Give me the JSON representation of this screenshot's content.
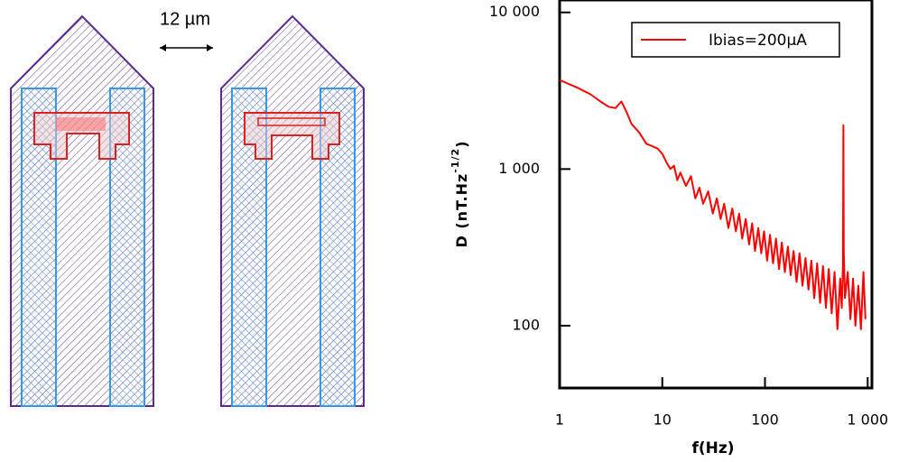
{
  "annotation": "12 µm",
  "chart_data": {
    "type": "line",
    "xlabel": "f(Hz)",
    "ylabel": [
      "D (nT.Hz",
      "-1/2",
      ")"
    ],
    "log_x": true,
    "log_y": true,
    "xlim": [
      1,
      1100
    ],
    "ylim": [
      40,
      12000
    ],
    "xticks": [
      1,
      10,
      100,
      {
        "value": 1000,
        "label": "1 000"
      }
    ],
    "yticks": [
      100,
      {
        "value": 1000,
        "label": "1 000"
      },
      {
        "value": 10000,
        "label": "10 000"
      }
    ],
    "legend": "upper right",
    "x": [
      1,
      1.5,
      2,
      2.5,
      3,
      3.5,
      4,
      4.5,
      5,
      6,
      7,
      8,
      9,
      10,
      11,
      12,
      13,
      14,
      15,
      17,
      19,
      21,
      23,
      25,
      28,
      31,
      34,
      37,
      40,
      44,
      48,
      52,
      56,
      60,
      65,
      70,
      75,
      80,
      86,
      92,
      98,
      105,
      112,
      120,
      128,
      137,
      146,
      156,
      167,
      178,
      190,
      203,
      217,
      232,
      248,
      265,
      283,
      302,
      322,
      344,
      367,
      392,
      418,
      446,
      476,
      508,
      540,
      560,
      575,
      580,
      585,
      600,
      640,
      680,
      720,
      760,
      810,
      860,
      910,
      950
    ],
    "series": [
      {
        "name": "Ibias=200µA",
        "color": "#ff0000",
        "values": [
          3700,
          3300,
          3000,
          2700,
          2500,
          2450,
          2700,
          2300,
          1950,
          1700,
          1450,
          1400,
          1350,
          1250,
          1100,
          1000,
          1050,
          850,
          950,
          780,
          900,
          650,
          760,
          600,
          720,
          520,
          650,
          480,
          600,
          420,
          560,
          400,
          520,
          360,
          480,
          330,
          450,
          300,
          420,
          290,
          400,
          260,
          380,
          250,
          360,
          230,
          340,
          220,
          320,
          210,
          300,
          190,
          290,
          180,
          270,
          170,
          260,
          150,
          250,
          140,
          240,
          130,
          230,
          120,
          220,
          95,
          200,
          130,
          240,
          1900,
          300,
          150,
          220,
          110,
          200,
          100,
          180,
          95,
          220,
          110
        ]
      }
    ]
  }
}
